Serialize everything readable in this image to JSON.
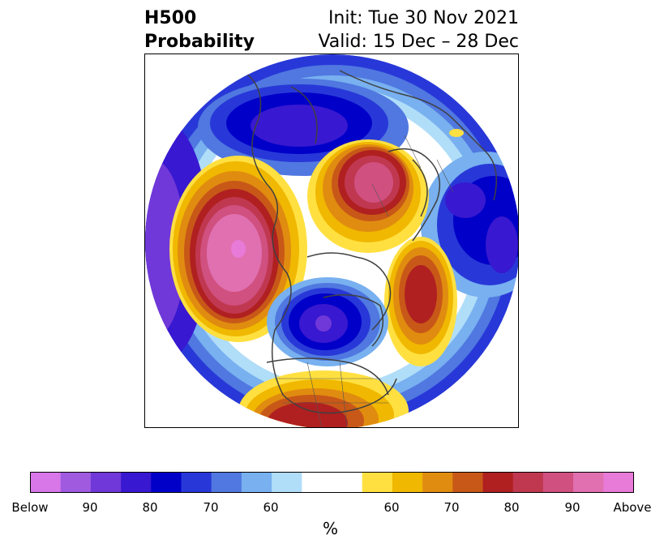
{
  "title": {
    "left_line1": "H500",
    "left_line2": "Probability",
    "right_line1": "Init: Tue 30 Nov 2021",
    "right_line2": "Valid: 15 Dec – 28 Dec"
  },
  "colorbar": {
    "unit": "%",
    "colors": [
      "#d877e8",
      "#a05ae0",
      "#7038d8",
      "#3818d0",
      "#0000c8",
      "#2838d8",
      "#5078e0",
      "#78b0f0",
      "#b0ddf8",
      "#ffffff",
      "#ffffff",
      "#ffe040",
      "#f0b800",
      "#e08c10",
      "#c85818",
      "#b02020",
      "#c03850",
      "#d05080",
      "#e070b0",
      "#e87ad8"
    ],
    "ticks": [
      "Below",
      "90",
      "80",
      "70",
      "60",
      "60",
      "70",
      "80",
      "90",
      "Above"
    ]
  },
  "map": {
    "projection": "north-polar-stereographic",
    "palette": {
      "blue_deep": "#0000c8",
      "blue_violet": "#3818d0",
      "purple": "#7038d8",
      "red": "#b02020",
      "magenta": "#d05080",
      "pink": "#e070d0",
      "coast": "#404040"
    }
  }
}
